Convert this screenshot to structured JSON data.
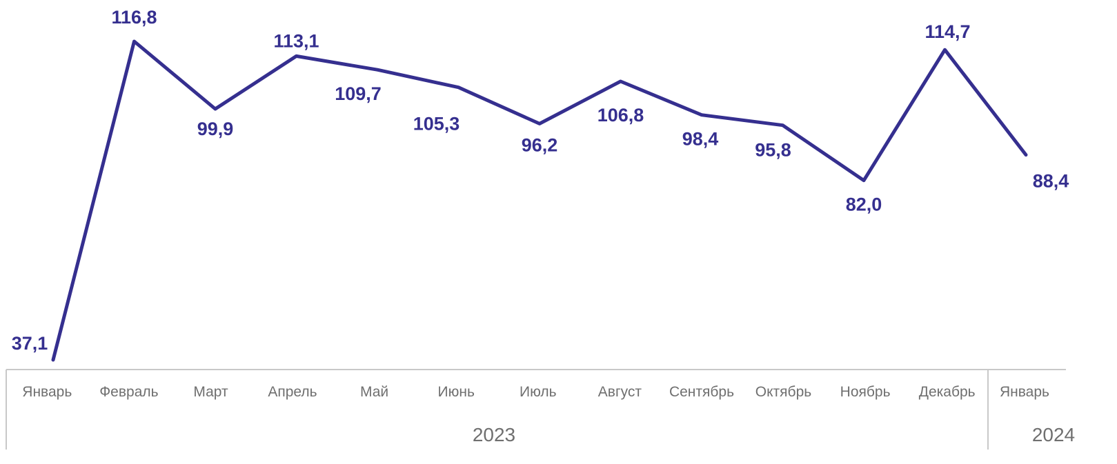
{
  "chart_data": {
    "type": "line",
    "title": "",
    "xlabel": "",
    "ylabel": "",
    "categories": [
      "Январь",
      "Февраль",
      "Март",
      "Апрель",
      "Май",
      "Июнь",
      "Июль",
      "Август",
      "Сентябрь",
      "Октябрь",
      "Ноябрь",
      "Декабрь",
      "Январь"
    ],
    "groups": [
      {
        "label": "2023",
        "count": 12
      },
      {
        "label": "2024",
        "count": 1
      }
    ],
    "series": [
      {
        "values": [
          37.1,
          116.8,
          99.9,
          113.1,
          109.7,
          105.3,
          96.2,
          106.8,
          98.4,
          95.8,
          82.0,
          114.7,
          88.4
        ],
        "labels": [
          "37,1",
          "116,8",
          "99,9",
          "113,1",
          "109,7",
          "105,3",
          "96,2",
          "106,8",
          "98,4",
          "95,8",
          "82,0",
          "114,7",
          "88,4"
        ],
        "color": "#352f8f"
      }
    ],
    "ylim": [
      37.1,
      116.8
    ],
    "grid": false,
    "legend": "none"
  }
}
